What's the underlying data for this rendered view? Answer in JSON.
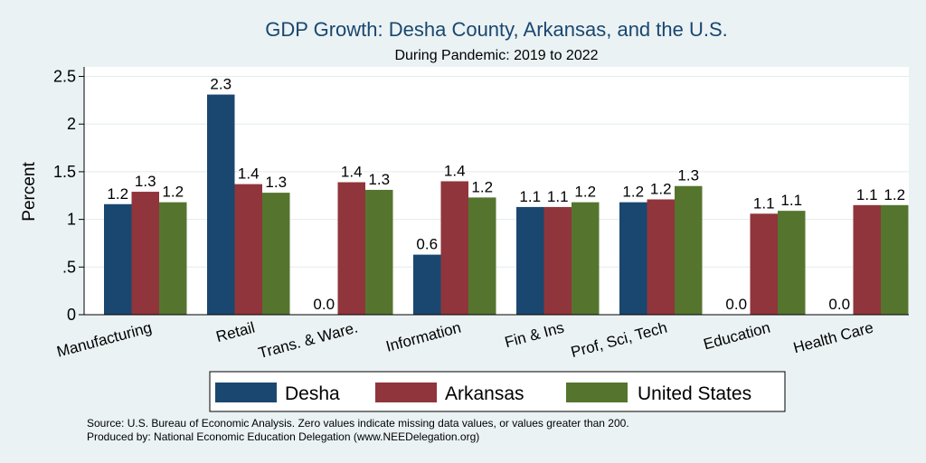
{
  "chart_data": {
    "type": "bar",
    "title": "GDP Growth: Desha County, Arkansas, and the U.S.",
    "subtitle": "During Pandemic: 2019 to 2022",
    "ylabel": "Percent",
    "xlabel": "",
    "ylim": [
      0,
      2.6
    ],
    "yticks": [
      0,
      0.5,
      1,
      1.5,
      2,
      2.5
    ],
    "ytick_labels": [
      "0",
      ".5",
      "1",
      "1.5",
      "2",
      "2.5"
    ],
    "categories": [
      "Manufacturing",
      "Retail",
      "Trans. & Ware.",
      "Information",
      "Fin & Ins",
      "Prof, Sci, Tech",
      "Education",
      "Health Care"
    ],
    "series": [
      {
        "name": "Desha",
        "color": "#1a476f",
        "values": [
          1.16,
          2.31,
          0,
          0.63,
          1.13,
          1.18,
          0,
          0
        ],
        "labels": [
          "1.2",
          "2.3",
          "0.0",
          "0.6",
          "1.1",
          "1.2",
          "0.0",
          "0.0"
        ]
      },
      {
        "name": "Arkansas",
        "color": "#90353b",
        "values": [
          1.29,
          1.37,
          1.39,
          1.4,
          1.13,
          1.21,
          1.06,
          1.15
        ],
        "labels": [
          "1.3",
          "1.4",
          "1.4",
          "1.4",
          "1.1",
          "1.2",
          "1.1",
          "1.1"
        ]
      },
      {
        "name": "United States",
        "color": "#55752f",
        "values": [
          1.18,
          1.28,
          1.31,
          1.23,
          1.18,
          1.35,
          1.09,
          1.15
        ],
        "labels": [
          "1.2",
          "1.3",
          "1.3",
          "1.2",
          "1.2",
          "1.3",
          "1.1",
          "1.2"
        ]
      }
    ],
    "legend": [
      "Desha",
      "Arkansas",
      "United States"
    ],
    "legend_position": "bottom",
    "grid": true,
    "notes": [
      "Source: U.S. Bureau of Economic Analysis. Zero values indicate missing data values, or values greater than 200.",
      "Produced by: National Economic Education Delegation (www.NEEDelegation.org)"
    ]
  }
}
